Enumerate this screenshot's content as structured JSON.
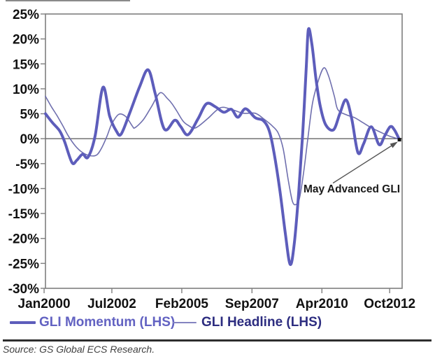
{
  "chart_data": {
    "type": "line",
    "title": "",
    "xlabel": "",
    "ylabel": "",
    "xlim": [
      2000.09,
      2013.25
    ],
    "ylim": [
      -30,
      25
    ],
    "grid": false,
    "zero_line": 0,
    "legend_position": "bottom",
    "x_ticks": [
      {
        "year": 2000.04,
        "label": "Jan2000"
      },
      {
        "year": 2002.54,
        "label": "Jul2002"
      },
      {
        "year": 2005.12,
        "label": "Feb2005"
      },
      {
        "year": 2007.71,
        "label": "Sep2007"
      },
      {
        "year": 2010.29,
        "label": "Apr2010"
      },
      {
        "year": 2012.79,
        "label": "Oct2012"
      }
    ],
    "y_ticks": [
      {
        "value": 25,
        "label": "25%"
      },
      {
        "value": 20,
        "label": "20%"
      },
      {
        "value": 15,
        "label": "15%"
      },
      {
        "value": 10,
        "label": "10%"
      },
      {
        "value": 5,
        "label": "5%"
      },
      {
        "value": 0,
        "label": "0%"
      },
      {
        "value": -5,
        "label": "-5%"
      },
      {
        "value": -10,
        "label": "-10%"
      },
      {
        "value": -15,
        "label": "-15%"
      },
      {
        "value": -20,
        "label": "-20%"
      },
      {
        "value": -25,
        "label": "-25%"
      },
      {
        "value": -30,
        "label": "-30%"
      }
    ],
    "series": [
      {
        "name": "GLI Headline (LHS)",
        "axis": "LHS",
        "width": 1.6,
        "color": "#6f6fae",
        "points": [
          [
            2000.09,
            8.5
          ],
          [
            2000.3,
            6.5
          ],
          [
            2000.53,
            4.5
          ],
          [
            2000.74,
            2.5
          ],
          [
            2000.94,
            0.5
          ],
          [
            2001.2,
            -1.5
          ],
          [
            2001.46,
            -2.8
          ],
          [
            2001.72,
            -3.4
          ],
          [
            2001.97,
            -3.3
          ],
          [
            2002.15,
            -2.0
          ],
          [
            2002.36,
            0.5
          ],
          [
            2002.54,
            3.0
          ],
          [
            2002.8,
            4.9
          ],
          [
            2003.06,
            4.4
          ],
          [
            2003.3,
            2.5
          ],
          [
            2003.39,
            2.2
          ],
          [
            2003.7,
            3.8
          ],
          [
            2004.01,
            6.5
          ],
          [
            2004.32,
            9.2
          ],
          [
            2004.6,
            8.0
          ],
          [
            2004.76,
            7.0
          ],
          [
            2004.94,
            5.5
          ],
          [
            2005.17,
            3.5
          ],
          [
            2005.38,
            2.6
          ],
          [
            2005.57,
            2.1
          ],
          [
            2005.76,
            2.6
          ],
          [
            2006.09,
            4.1
          ],
          [
            2006.54,
            6.2
          ],
          [
            2006.93,
            5.9
          ],
          [
            2007.39,
            5.1
          ],
          [
            2007.83,
            5.1
          ],
          [
            2008.16,
            3.9
          ],
          [
            2008.47,
            2.5
          ],
          [
            2008.68,
            1.1
          ],
          [
            2008.86,
            -2.0
          ],
          [
            2009.04,
            -8.0
          ],
          [
            2009.2,
            -12.5
          ],
          [
            2009.33,
            -13.2
          ],
          [
            2009.46,
            -12.0
          ],
          [
            2009.61,
            -7.0
          ],
          [
            2009.76,
            -0.5
          ],
          [
            2009.94,
            7.0
          ],
          [
            2010.15,
            11.5
          ],
          [
            2010.36,
            14.2
          ],
          [
            2010.54,
            12.5
          ],
          [
            2010.75,
            8.5
          ],
          [
            2010.88,
            5.8
          ],
          [
            2011.19,
            4.8
          ],
          [
            2011.5,
            4.2
          ],
          [
            2011.78,
            3.3
          ],
          [
            2012.02,
            2.5
          ],
          [
            2012.3,
            1.7
          ],
          [
            2012.53,
            1.1
          ],
          [
            2012.79,
            0.5
          ],
          [
            2013.02,
            0.1
          ],
          [
            2013.15,
            -0.2
          ]
        ]
      },
      {
        "name": "GLI Momentum (LHS)",
        "axis": "LHS",
        "width": 4,
        "color": "#5d5dbb",
        "points": [
          [
            2000.09,
            5.0
          ],
          [
            2000.35,
            3.2
          ],
          [
            2000.61,
            1.6
          ],
          [
            2000.79,
            -0.5
          ],
          [
            2001.07,
            -4.8
          ],
          [
            2001.25,
            -4.3
          ],
          [
            2001.46,
            -3.1
          ],
          [
            2001.66,
            -3.7
          ],
          [
            2001.92,
            0.5
          ],
          [
            2002.21,
            10.3
          ],
          [
            2002.46,
            4.5
          ],
          [
            2002.7,
            1.6
          ],
          [
            2002.88,
            0.9
          ],
          [
            2003.19,
            5.0
          ],
          [
            2003.57,
            10.5
          ],
          [
            2003.88,
            13.8
          ],
          [
            2004.14,
            9.0
          ],
          [
            2004.48,
            1.9
          ],
          [
            2004.86,
            3.7
          ],
          [
            2005.07,
            2.5
          ],
          [
            2005.35,
            0.8
          ],
          [
            2005.72,
            4.0
          ],
          [
            2006.03,
            7.0
          ],
          [
            2006.36,
            6.4
          ],
          [
            2006.67,
            5.3
          ],
          [
            2006.95,
            5.9
          ],
          [
            2007.19,
            4.3
          ],
          [
            2007.47,
            6.0
          ],
          [
            2007.83,
            4.2
          ],
          [
            2008.11,
            3.7
          ],
          [
            2008.32,
            2.0
          ],
          [
            2008.48,
            -1.5
          ],
          [
            2008.73,
            -10.0
          ],
          [
            2008.94,
            -19.0
          ],
          [
            2009.12,
            -25.2
          ],
          [
            2009.27,
            -21.0
          ],
          [
            2009.43,
            -11.0
          ],
          [
            2009.58,
            1.0
          ],
          [
            2009.71,
            14.0
          ],
          [
            2009.79,
            21.9
          ],
          [
            2009.92,
            19.0
          ],
          [
            2010.07,
            12.0
          ],
          [
            2010.23,
            6.5
          ],
          [
            2010.43,
            2.8
          ],
          [
            2010.72,
            1.8
          ],
          [
            2010.95,
            5.0
          ],
          [
            2011.18,
            7.8
          ],
          [
            2011.39,
            4.0
          ],
          [
            2011.62,
            -2.8
          ],
          [
            2011.83,
            -1.0
          ],
          [
            2012.11,
            2.4
          ],
          [
            2012.4,
            -1.2
          ],
          [
            2012.6,
            0.5
          ],
          [
            2012.81,
            2.4
          ],
          [
            2012.96,
            1.8
          ],
          [
            2013.15,
            -0.2
          ]
        ]
      }
    ],
    "annotation": {
      "text": "May Advanced GLI",
      "marker": {
        "year": 2013.15,
        "value": -0.2
      }
    }
  },
  "legend": {
    "momentum_label": "GLI Momentum (LHS)",
    "headline_label": "GLI Headline (LHS)"
  },
  "annotation": {
    "label": "May Advanced GLI"
  },
  "source": {
    "text": "Source: GS Global ECS Research."
  },
  "colors": {
    "axis": "#7f7f7f",
    "zero_line": "#666666",
    "momentum_line": "#5d5dbb",
    "headline_line": "#6f6fae",
    "legend_momentum_text": "#6262c2",
    "legend_headline_text": "#2d2d80",
    "headline_swatch": "#8484c0",
    "annotation_arrow": "#555555",
    "marker": "#111111",
    "tick_label": "#111111"
  }
}
